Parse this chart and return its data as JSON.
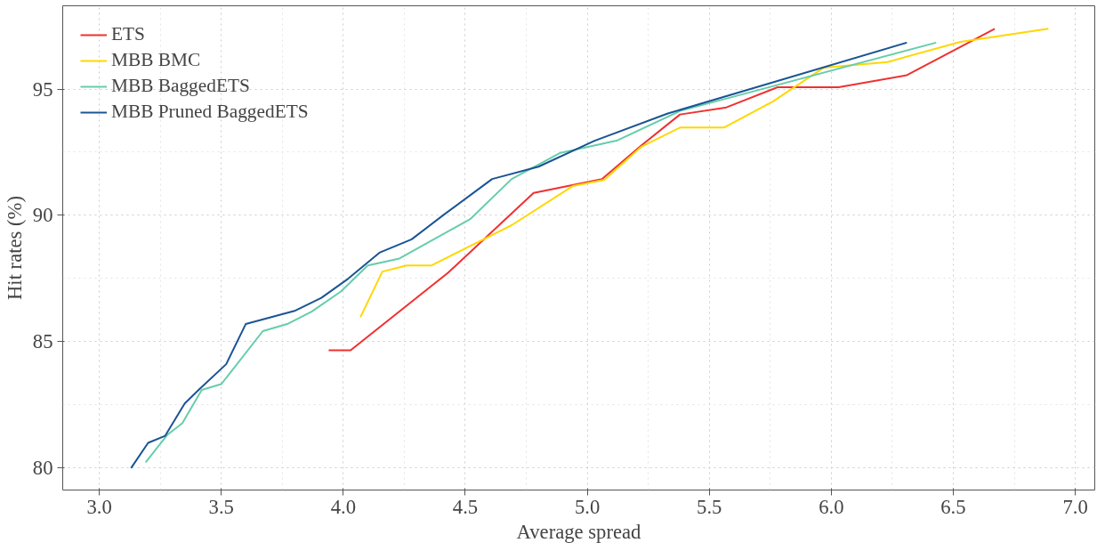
{
  "chart_data": {
    "type": "line",
    "xlabel": "Average spread",
    "ylabel": "Hit rates (%)",
    "xlim": [
      2.85,
      7.08
    ],
    "ylim": [
      79.1,
      98.3
    ],
    "xticks": [
      {
        "value": 3,
        "label": "3.0"
      },
      3.5,
      {
        "value": 4,
        "label": "4.0"
      },
      4.5,
      {
        "value": 5,
        "label": "5.0"
      },
      5.5,
      {
        "value": 6,
        "label": "6.0"
      },
      6.5,
      {
        "value": 7,
        "label": "7.0"
      }
    ],
    "yticks": [
      80,
      85,
      90,
      95
    ],
    "grid": true,
    "legend": "top left",
    "line_style": "solid",
    "series": [
      {
        "name": "ETS",
        "color": "#f03030",
        "x": [
          3.94,
          4.03,
          4.43,
          4.78,
          5.06,
          5.22,
          5.38,
          5.57,
          5.78,
          6.03,
          6.31,
          6.67
        ],
        "values": [
          84.64,
          84.64,
          87.72,
          90.88,
          91.43,
          92.75,
          93.99,
          94.27,
          95.07,
          95.07,
          95.55,
          97.39
        ]
      },
      {
        "name": "MBB BMC",
        "color": "#ffd700",
        "x": [
          4.07,
          4.16,
          4.26,
          4.36,
          4.69,
          4.94,
          5.07,
          5.22,
          5.38,
          5.56,
          5.76,
          5.97,
          6.23,
          6.53,
          6.89
        ],
        "values": [
          85.95,
          87.76,
          88.0,
          88.0,
          89.6,
          91.15,
          91.4,
          92.7,
          93.47,
          93.47,
          94.5,
          95.85,
          96.07,
          96.87,
          97.39
        ]
      },
      {
        "name": "MBB BaggedETS",
        "color": "#66cdaa",
        "x": [
          3.19,
          3.28,
          3.34,
          3.42,
          3.5,
          3.67,
          3.77,
          3.87,
          3.99,
          4.1,
          4.23,
          4.52,
          4.69,
          4.89,
          5.12,
          5.38,
          6.43
        ],
        "values": [
          80.2,
          81.3,
          81.75,
          83.07,
          83.3,
          85.4,
          85.68,
          86.17,
          86.97,
          88.0,
          88.28,
          89.84,
          91.43,
          92.47,
          92.95,
          94.13,
          96.84
        ]
      },
      {
        "name": "MBB Pruned BaggedETS",
        "color": "#1a5494",
        "x": [
          3.13,
          3.2,
          3.27,
          3.35,
          3.41,
          3.52,
          3.6,
          3.8,
          3.91,
          4.02,
          4.15,
          4.28,
          4.41,
          4.61,
          4.8,
          5.03,
          5.33,
          6.31
        ],
        "values": [
          79.97,
          80.97,
          81.25,
          82.53,
          83.1,
          84.09,
          85.68,
          86.2,
          86.72,
          87.48,
          88.52,
          89.04,
          90.0,
          91.43,
          91.92,
          92.95,
          94.03,
          96.84
        ]
      }
    ]
  }
}
